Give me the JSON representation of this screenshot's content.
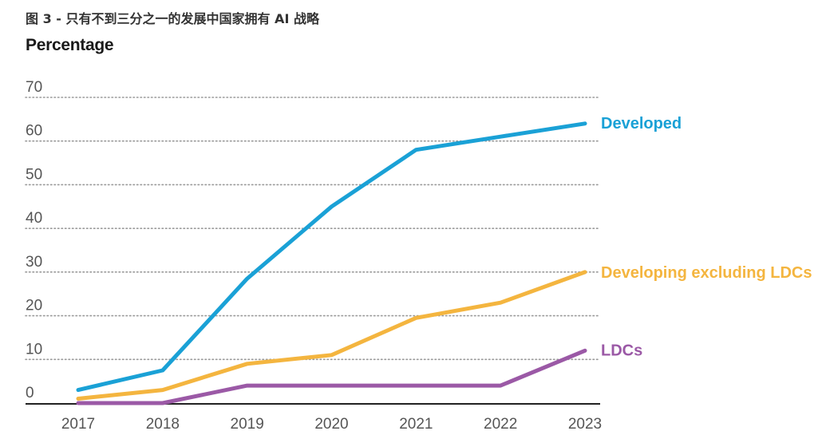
{
  "figure": {
    "title": "图 3 - 只有不到三分之一的发展中国家拥有 AI 战略",
    "y_unit_label": "Percentage"
  },
  "chart_data": {
    "type": "line",
    "title": "图 3 - 只有不到三分之一的发展中国家拥有 AI 战略",
    "xlabel": "",
    "ylabel": "Percentage",
    "x": [
      2017,
      2018,
      2019,
      2020,
      2021,
      2022,
      2023
    ],
    "x_tick_labels": [
      "2017",
      "2018",
      "2019",
      "2020",
      "2021",
      "2022",
      "2023"
    ],
    "ylim": [
      0,
      70
    ],
    "y_ticks": [
      0,
      10,
      20,
      30,
      40,
      50,
      60,
      70
    ],
    "y_tick_labels": [
      "0",
      "10",
      "20",
      "30",
      "40",
      "50",
      "60",
      "70"
    ],
    "grid": "horizontal dotted",
    "legend": "inline labels at line ends (right)",
    "series": [
      {
        "name": "Developed",
        "color": "#1aa1d6",
        "values": [
          3,
          7.5,
          28.5,
          45,
          58,
          61,
          64
        ]
      },
      {
        "name": "Developing excluding LDCs",
        "color": "#f4b53f",
        "values": [
          1,
          3,
          9,
          11,
          19.5,
          23,
          30
        ]
      },
      {
        "name": "LDCs",
        "color": "#9b59a6",
        "values": [
          0,
          0,
          4,
          4,
          4,
          4,
          12
        ]
      }
    ]
  }
}
